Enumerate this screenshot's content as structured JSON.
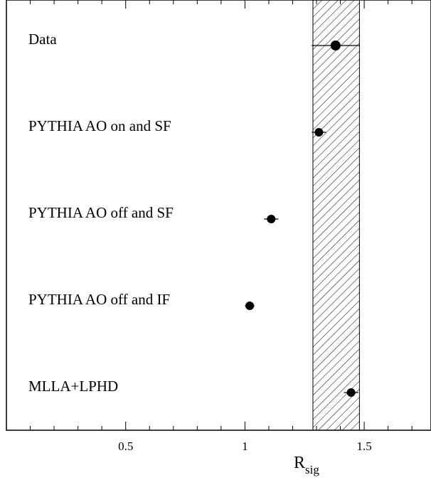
{
  "chart_data": {
    "type": "scatter",
    "orientation": "horizontal-dot",
    "xlabel": "R",
    "xlabel_subscript": "sig",
    "xlim": [
      0.0,
      1.78
    ],
    "xticks": [
      0.5,
      1,
      1.5
    ],
    "xtick_labels": [
      "0.5",
      "1",
      "1.5"
    ],
    "band": {
      "min": 1.285,
      "max": 1.48,
      "style": "hatched"
    },
    "grid": false,
    "points": [
      {
        "label": "Data",
        "x": 1.38,
        "xerr": 0.1,
        "size": "large"
      },
      {
        "label": "PYTHIA AO on and SF",
        "x": 1.31,
        "xerr": 0.03,
        "size": "small"
      },
      {
        "label": "PYTHIA AO off and SF",
        "x": 1.11,
        "xerr": 0.03,
        "size": "small"
      },
      {
        "label": "PYTHIA AO off and IF",
        "x": 1.02,
        "xerr": 0.02,
        "size": "small"
      },
      {
        "label": "MLLA+LPHD",
        "x": 1.445,
        "xerr": 0.03,
        "size": "small"
      }
    ]
  }
}
